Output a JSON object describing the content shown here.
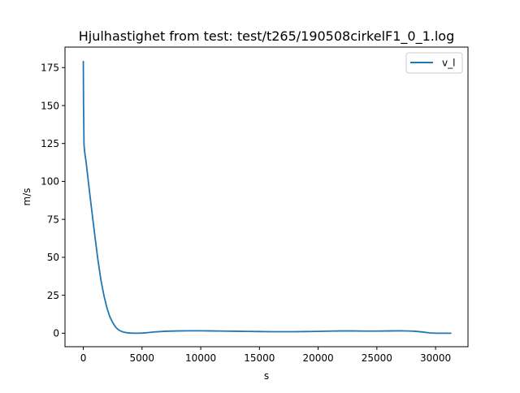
{
  "chart_data": {
    "type": "line",
    "title": "Hjulhastighet from test: test/t265/190508cirkelF1_0_1.log",
    "xlabel": "s",
    "ylabel": "m/s",
    "xlim": [
      -1560,
      32760
    ],
    "ylim": [
      -8.9,
      188.5
    ],
    "xticks": [
      0,
      5000,
      10000,
      15000,
      20000,
      25000,
      30000
    ],
    "yticks": [
      0,
      25,
      50,
      75,
      100,
      125,
      150,
      175
    ],
    "grid": false,
    "legend_position": "top-right",
    "series": [
      {
        "name": "v_l",
        "color": "#1f77b4",
        "x": [
          0,
          20,
          60,
          120,
          250,
          500,
          750,
          1000,
          1250,
          1500,
          1750,
          2000,
          2250,
          2500,
          2750,
          3000,
          3250,
          3500,
          3750,
          4000,
          4500,
          5000,
          5500,
          6000,
          7000,
          8000,
          9000,
          10000,
          11000,
          12000,
          13000,
          14000,
          15000,
          16000,
          17000,
          18000,
          19000,
          20000,
          21000,
          22000,
          23000,
          24000,
          25000,
          26000,
          27000,
          28000,
          28500,
          29000,
          29500,
          30000,
          30500,
          31000,
          31300
        ],
        "y": [
          179,
          150,
          124,
          119,
          112,
          95,
          79,
          63,
          48,
          35,
          25,
          17,
          11,
          7,
          4,
          2.2,
          1.2,
          0.6,
          0.3,
          0.1,
          0,
          0.1,
          0.4,
          0.8,
          1.3,
          1.5,
          1.6,
          1.6,
          1.5,
          1.4,
          1.3,
          1.2,
          1.1,
          1.0,
          1.0,
          1.0,
          1.1,
          1.2,
          1.4,
          1.5,
          1.5,
          1.4,
          1.4,
          1.5,
          1.6,
          1.4,
          1.1,
          0.7,
          0.2,
          0,
          0,
          0,
          0
        ]
      }
    ]
  }
}
